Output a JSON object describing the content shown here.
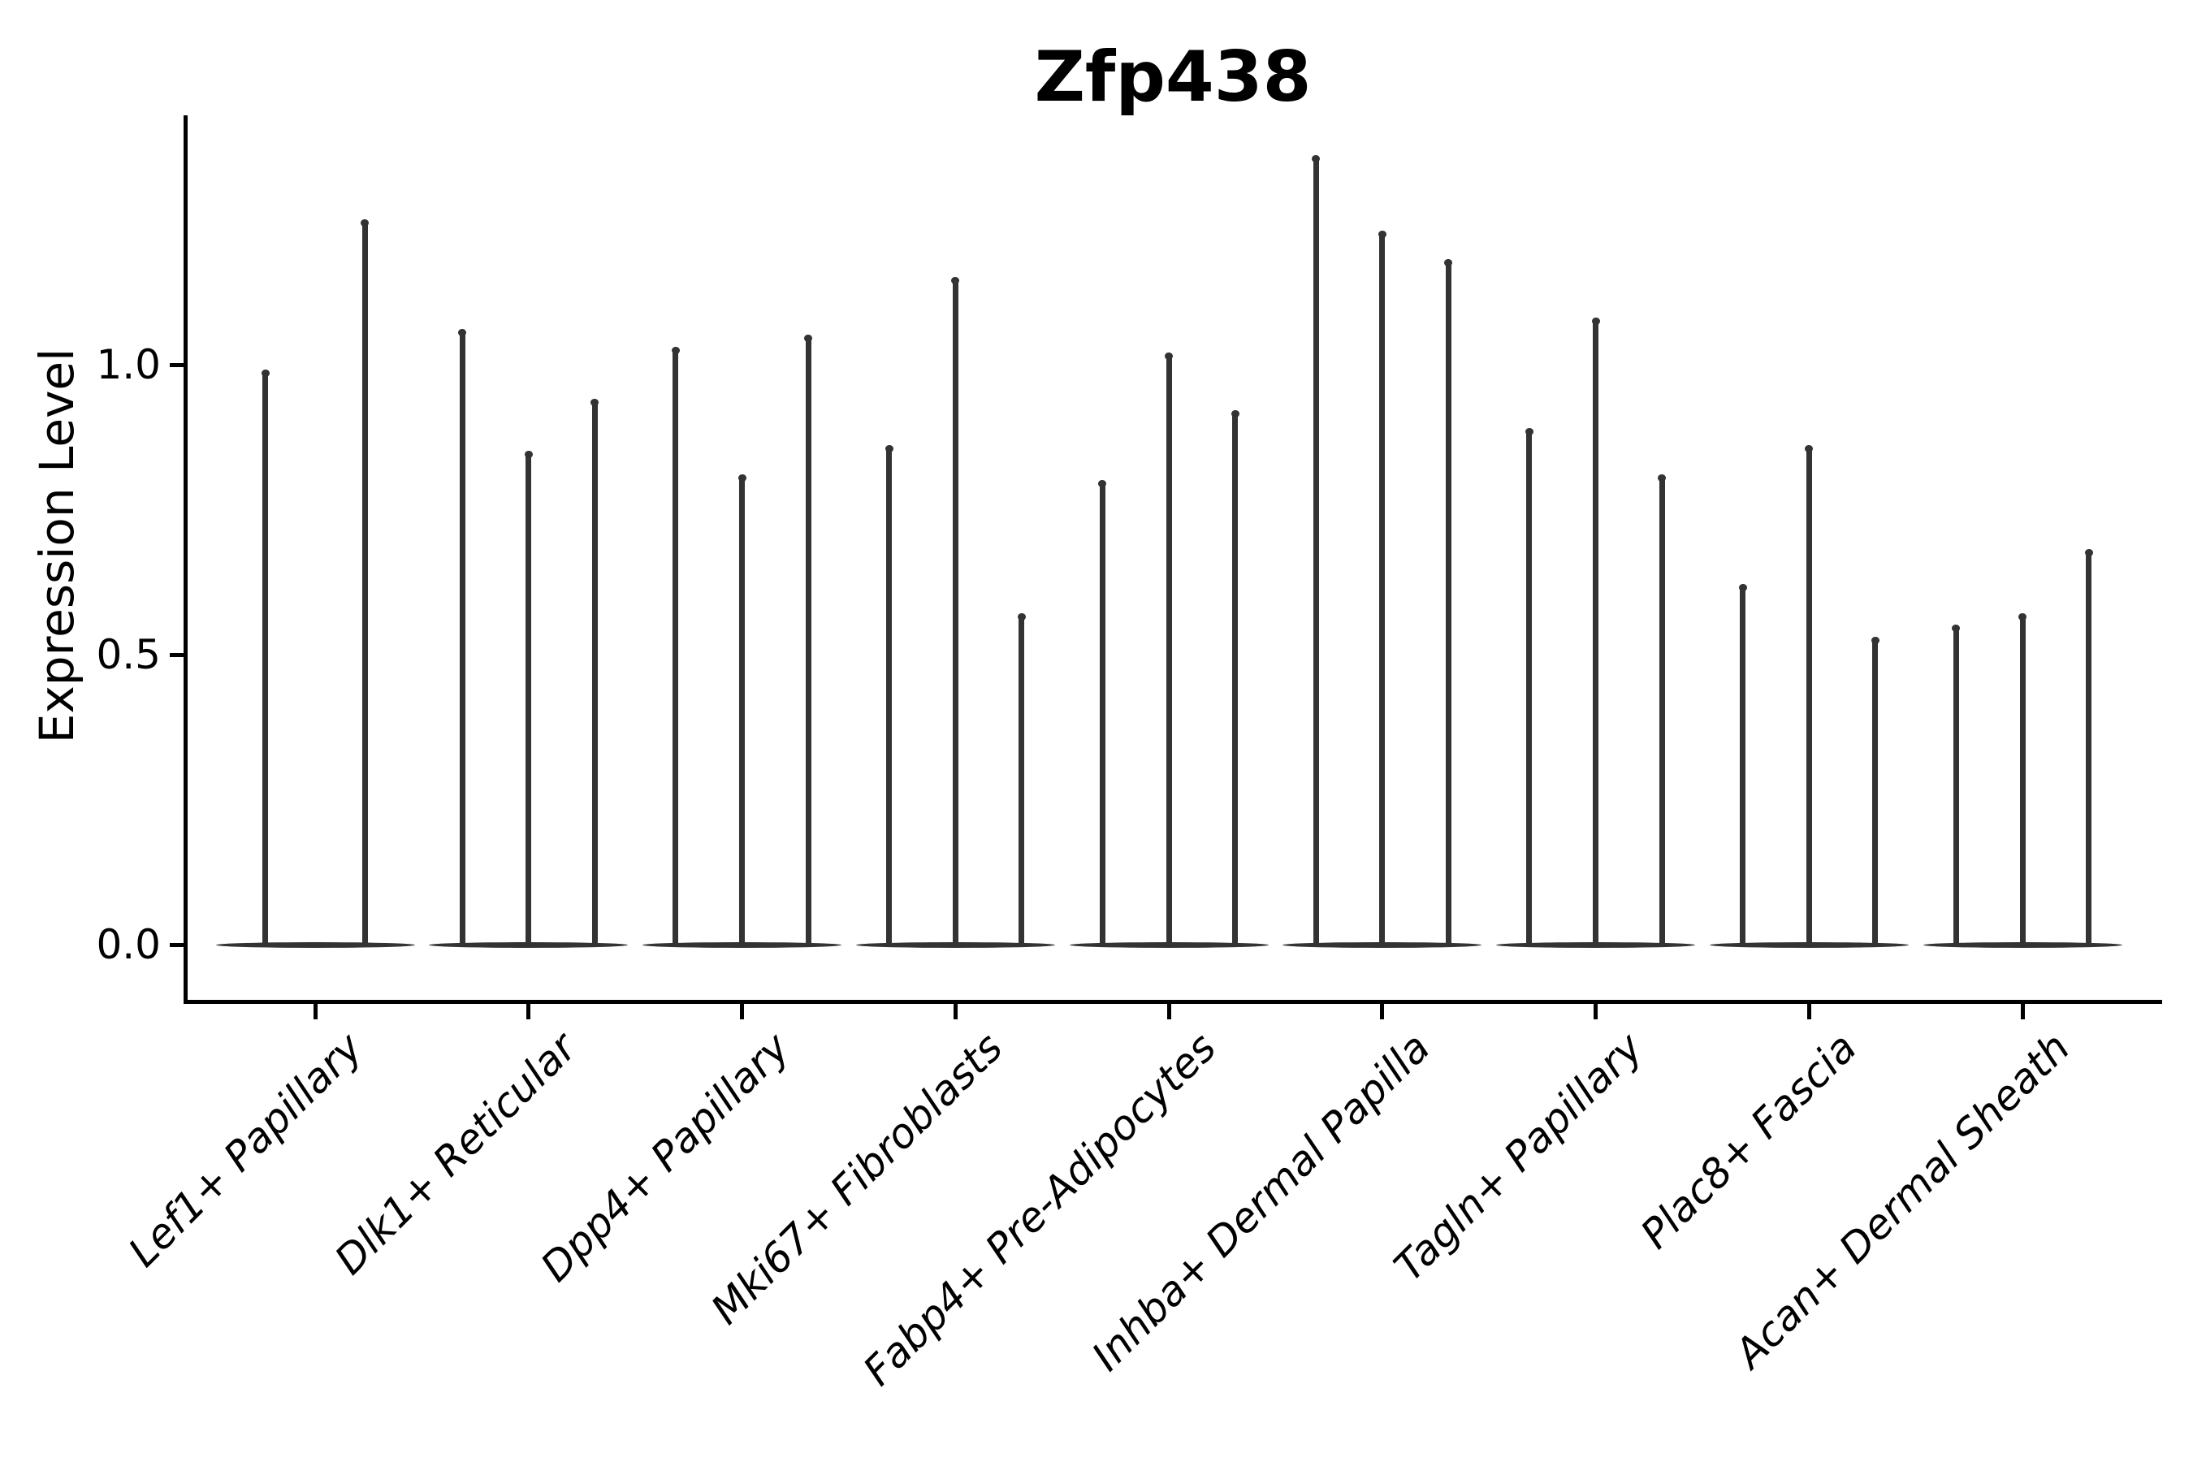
{
  "chart_data": {
    "type": "violin",
    "title": "Zfp438",
    "xlabel": "",
    "ylabel": "Expression Level",
    "ylim": [
      -0.1,
      1.43
    ],
    "y_ticks": [
      0.0,
      0.5,
      1.0
    ],
    "y_tick_labels": [
      "0.0",
      "0.5",
      "1.0"
    ],
    "grid": false,
    "spines": [
      "left",
      "bottom"
    ],
    "legend": "none",
    "categories": [
      "Lef1+ Papillary",
      "Dlk1+ Reticular",
      "Dpp4+ Papillary",
      "Mki67+ Fibroblasts",
      "Fabp4+ Pre-Adipocytes",
      "Inhba+ Dermal Papilla",
      "Tagln+ Papillary",
      "Plac8+ Fascia",
      "Acan+ Dermal Sheath"
    ],
    "series": [
      {
        "category": "Lef1+ Papillary",
        "violin_max_values": [
          0.99,
          1.25
        ]
      },
      {
        "category": "Dlk1+ Reticular",
        "violin_max_values": [
          1.06,
          0.85,
          0.94
        ]
      },
      {
        "category": "Dpp4+ Papillary",
        "violin_max_values": [
          1.03,
          0.81,
          1.05
        ]
      },
      {
        "category": "Mki67+ Fibroblasts",
        "violin_max_values": [
          0.86,
          1.15,
          0.57
        ]
      },
      {
        "category": "Fabp4+ Pre-Adipocytes",
        "violin_max_values": [
          0.8,
          1.02,
          0.92
        ]
      },
      {
        "category": "Inhba+ Dermal Papilla",
        "violin_max_values": [
          1.36,
          1.23,
          1.18
        ]
      },
      {
        "category": "Tagln+ Papillary",
        "violin_max_values": [
          0.89,
          1.08,
          0.81
        ]
      },
      {
        "category": "Plac8+ Fascia",
        "violin_max_values": [
          0.62,
          0.86,
          0.53
        ]
      },
      {
        "category": "Acan+ Dermal Sheath",
        "violin_max_values": [
          0.55,
          0.57,
          0.68
        ]
      }
    ],
    "violin_baseline_value": 0.0,
    "colors": {
      "violin": "#333333",
      "axis": "#000000",
      "text": "#000000",
      "background": "#ffffff"
    }
  }
}
